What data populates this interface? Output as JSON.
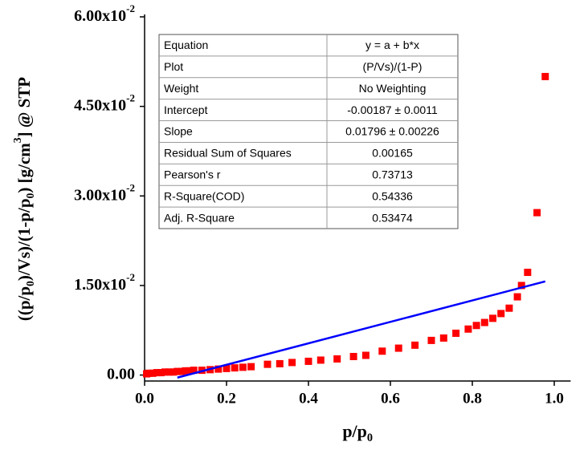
{
  "chart_data": {
    "type": "scatter",
    "xlabel": [
      {
        "text": "p/p"
      },
      {
        "text": "0",
        "style": "sub"
      }
    ],
    "ylabel": [
      {
        "text": "((p/p"
      },
      {
        "text": "0",
        "style": "sub"
      },
      {
        "text": ")/Vs)/(1-p/p"
      },
      {
        "text": "0",
        "style": "sub"
      },
      {
        "text": ") [g/cm"
      },
      {
        "text": "3",
        "style": "sup"
      },
      {
        "text": "] @ STP"
      }
    ],
    "xlim": [
      0,
      1.04
    ],
    "ylim": [
      -0.001,
      0.06
    ],
    "xticks": [
      {
        "value": 0,
        "label": "0.0"
      },
      0.2,
      0.4,
      0.6,
      0.8,
      {
        "value": 1,
        "label": "1.0"
      }
    ],
    "yticks": [
      {
        "value": 0,
        "label": "0.00"
      },
      {
        "value": 0.015,
        "label": "1.50x10",
        "exponent": "-2"
      },
      {
        "value": 0.03,
        "label": "3.00x10",
        "exponent": "-2"
      },
      {
        "value": 0.045,
        "label": "4.50x10",
        "exponent": "-2"
      },
      {
        "value": 0.06,
        "label": "6.00x10",
        "exponent": "-2"
      }
    ],
    "series": [
      {
        "type": "scatter",
        "color": "#ff0000",
        "x": [
          0.005,
          0.01,
          0.02,
          0.03,
          0.04,
          0.05,
          0.06,
          0.07,
          0.08,
          0.09,
          0.1,
          0.11,
          0.12,
          0.14,
          0.16,
          0.18,
          0.2,
          0.22,
          0.24,
          0.26,
          0.3,
          0.33,
          0.36,
          0.4,
          0.43,
          0.47,
          0.51,
          0.54,
          0.58,
          0.62,
          0.66,
          0.7,
          0.73,
          0.76,
          0.79,
          0.81,
          0.83,
          0.85,
          0.87,
          0.89,
          0.91,
          0.92,
          0.935,
          0.958,
          0.978
        ],
        "values": [
          0.0002,
          0.0003,
          0.0003,
          0.0004,
          0.0004,
          0.0005,
          0.0005,
          0.0005,
          0.0006,
          0.0006,
          0.0007,
          0.0007,
          0.0008,
          0.0008,
          0.0009,
          0.001,
          0.0011,
          0.0012,
          0.0013,
          0.0014,
          0.0018,
          0.0019,
          0.0021,
          0.0023,
          0.0025,
          0.0027,
          0.0031,
          0.0033,
          0.004,
          0.0045,
          0.005,
          0.0058,
          0.0062,
          0.007,
          0.0077,
          0.0083,
          0.0088,
          0.0095,
          0.0103,
          0.0112,
          0.0131,
          0.015,
          0.0172,
          0.0272,
          0.05
        ]
      },
      {
        "type": "line",
        "color": "#0000ff",
        "x": [
          0.08,
          0.978
        ],
        "values": [
          -0.00043,
          0.01569
        ]
      }
    ],
    "table": {
      "rows": [
        [
          "Equation",
          "y = a + b*x"
        ],
        [
          "Plot",
          "(P/Vs)/(1-P)"
        ],
        [
          "Weight",
          "No Weighting"
        ],
        [
          "Intercept",
          "-0.00187 ± 0.0011"
        ],
        [
          "Slope",
          "0.01796 ± 0.00226"
        ],
        [
          "Residual Sum of Squares",
          "0.00165"
        ],
        [
          "Pearson's r",
          "0.73713"
        ],
        [
          "R-Square(COD)",
          "0.54336"
        ],
        [
          "Adj. R-Square",
          "0.53474"
        ]
      ]
    }
  }
}
